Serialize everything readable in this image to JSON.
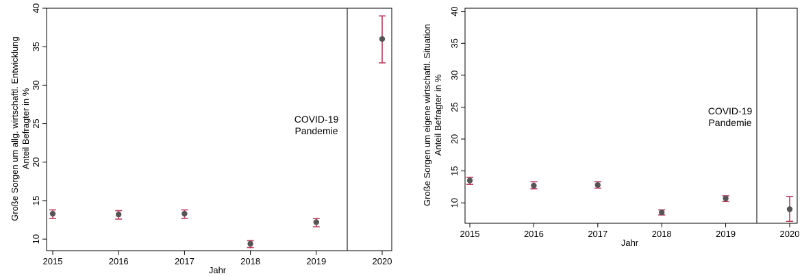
{
  "chart_data": [
    {
      "type": "scatter",
      "error_bars": true,
      "title": "",
      "xlabel": "Jahr",
      "ylabel_lines": [
        "Große Sorgen um allg. wirtschaftl. Entwicklung",
        "Anteil Befragter in %"
      ],
      "x_ticks": [
        "2015",
        "2016",
        "2017",
        "2018",
        "2019",
        "2020"
      ],
      "y_ticks": [
        10,
        15,
        20,
        25,
        30,
        35,
        40
      ],
      "ylim": [
        8.5,
        40
      ],
      "x": [
        2015,
        2016,
        2017,
        2018,
        2019,
        2020
      ],
      "values": [
        13.3,
        13.2,
        13.3,
        9.4,
        12.2,
        36.0
      ],
      "ci_low": [
        12.7,
        12.6,
        12.7,
        8.9,
        11.6,
        32.9
      ],
      "ci_high": [
        13.8,
        13.7,
        13.8,
        9.8,
        12.7,
        39.0
      ],
      "event": {
        "x": 2019.5,
        "label_lines": [
          "COVID-19",
          "Pandemie"
        ]
      },
      "grid": false,
      "colors": {
        "point": "#555555",
        "error_bar": "#c0385c",
        "axis": "#000000"
      }
    },
    {
      "type": "scatter",
      "error_bars": true,
      "title": "",
      "xlabel": "Jahr",
      "ylabel_lines": [
        "Große Sorgen um eigene wirtschaftl. Situation",
        "Anteil Befragter in %"
      ],
      "x_ticks": [
        "2015",
        "2016",
        "2017",
        "2018",
        "2019",
        "2020"
      ],
      "y_ticks": [
        10,
        15,
        20,
        25,
        30,
        35,
        40
      ],
      "ylim": [
        6.8,
        40.5
      ],
      "x": [
        2015,
        2016,
        2017,
        2018,
        2019,
        2020
      ],
      "values": [
        13.5,
        12.7,
        12.8,
        8.5,
        10.7,
        9.0
      ],
      "ci_low": [
        12.9,
        12.2,
        12.3,
        8.1,
        10.2,
        7.1
      ],
      "ci_high": [
        14.0,
        13.3,
        13.3,
        8.9,
        11.1,
        11.0
      ],
      "event": {
        "x": 2019.5,
        "label_lines": [
          "COVID-19",
          "Pandemie"
        ]
      },
      "grid": false,
      "colors": {
        "point": "#555555",
        "error_bar": "#c0385c",
        "axis": "#000000"
      }
    }
  ]
}
